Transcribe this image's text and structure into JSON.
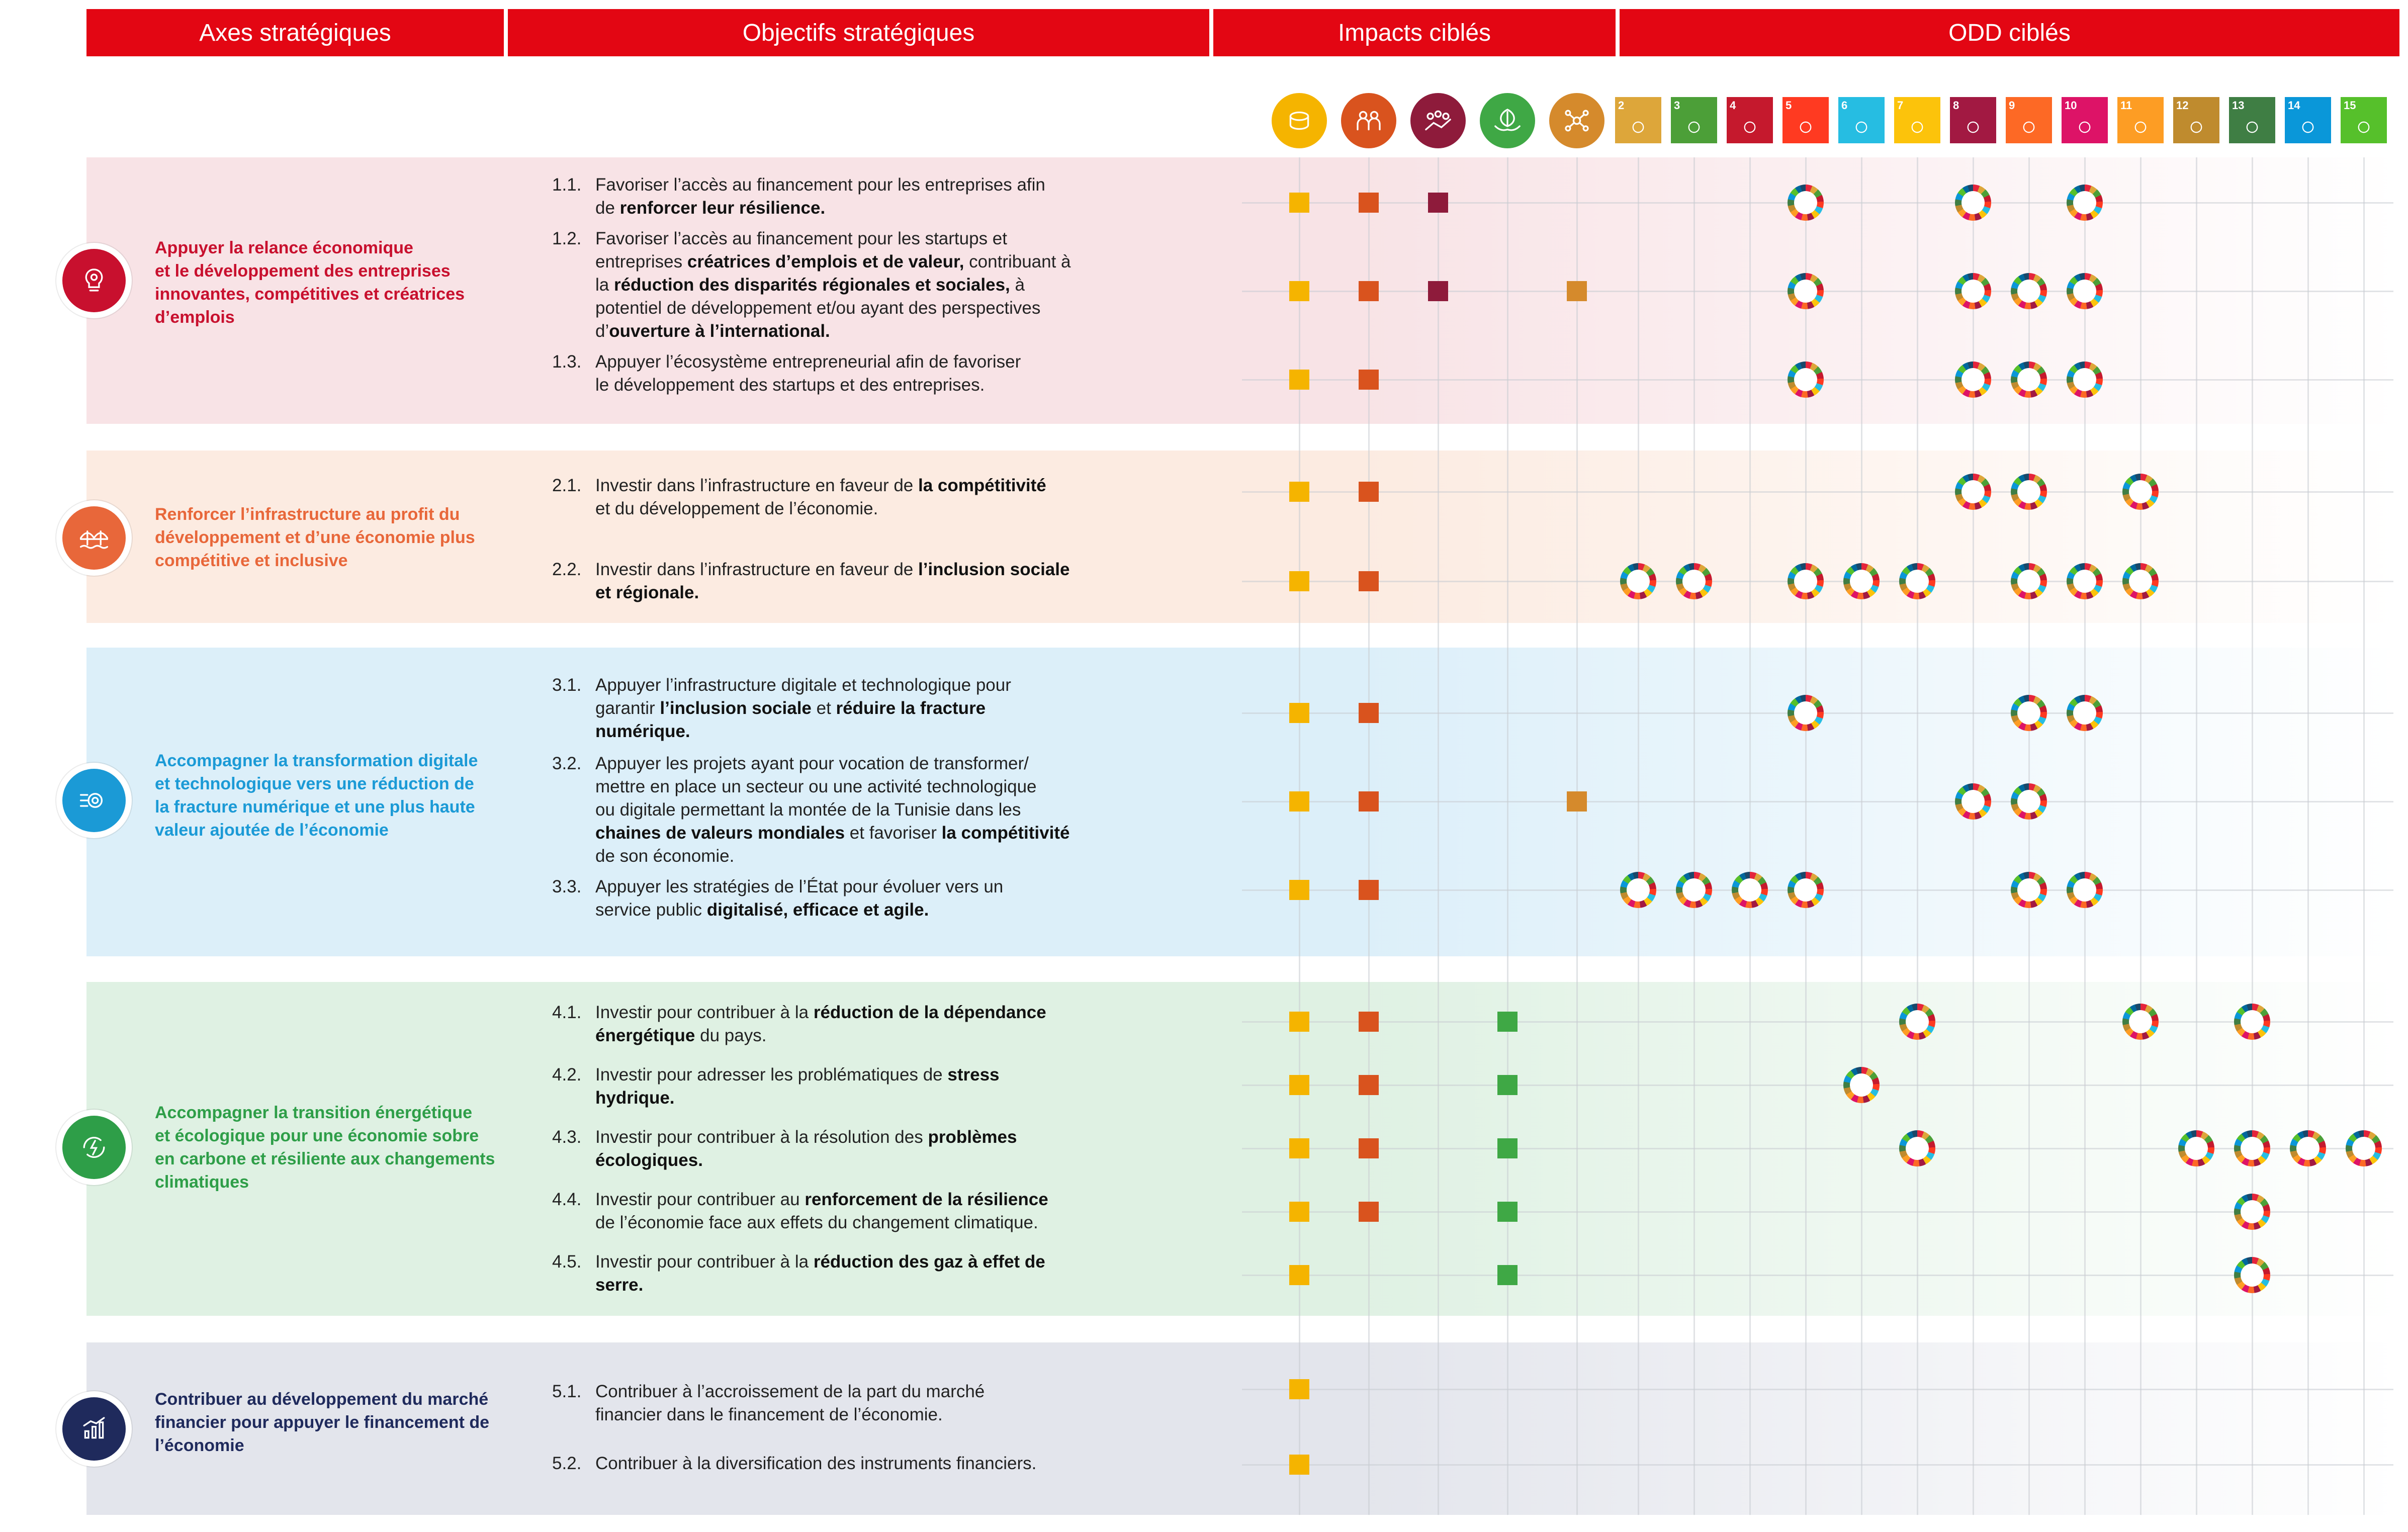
{
  "headers": {
    "axes": "Axes stratégiques",
    "objectives": "Objectifs stratégiques",
    "impacts": "Impacts ciblés",
    "odd": "ODD ciblés"
  },
  "impact_icons": [
    {
      "name": "coins-icon",
      "color": "#f5b400"
    },
    {
      "name": "people-group-icon",
      "color": "#d9531e"
    },
    {
      "name": "crowd-icon",
      "color": "#8e1b3b"
    },
    {
      "name": "leaf-hands-icon",
      "color": "#3fa845"
    },
    {
      "name": "network-icon",
      "color": "#d58a2c"
    }
  ],
  "sdg_icons": [
    {
      "number": "2",
      "color": "#dda63a",
      "icon": "bowl-icon"
    },
    {
      "number": "3",
      "color": "#4c9f38",
      "icon": "heartbeat-icon"
    },
    {
      "number": "4",
      "color": "#c5192d",
      "icon": "book-icon"
    },
    {
      "number": "5",
      "color": "#ff3a21",
      "icon": "gender-icon"
    },
    {
      "number": "6",
      "color": "#26bde2",
      "icon": "water-drop-icon"
    },
    {
      "number": "7",
      "color": "#fcc30b",
      "icon": "sun-icon"
    },
    {
      "number": "8",
      "color": "#a21942",
      "icon": "growth-chart-icon"
    },
    {
      "number": "9",
      "color": "#fd6925",
      "icon": "cubes-icon"
    },
    {
      "number": "10",
      "color": "#dd1367",
      "icon": "equality-icon"
    },
    {
      "number": "11",
      "color": "#fd9d24",
      "icon": "city-icon"
    },
    {
      "number": "12",
      "color": "#bf8b2e",
      "icon": "infinity-icon"
    },
    {
      "number": "13",
      "color": "#3f7e44",
      "icon": "eye-globe-icon"
    },
    {
      "number": "14",
      "color": "#0a97d9",
      "icon": "fish-icon"
    },
    {
      "number": "15",
      "color": "#56c02b",
      "icon": "tree-icon"
    }
  ],
  "axes": [
    {
      "title_lines": [
        "Appuyer la relance économique",
        "et le développement des entreprises",
        "innovantes, compétitives et créatrices",
        "d’emplois"
      ],
      "color": "#c8102e",
      "band_color": "#f8e3e6",
      "icon": "lightbulb-gear-icon",
      "objectives": [
        {
          "num": "1.1.",
          "parts": [
            {
              "t": "Favoriser l’accès au financement pour les entreprises afin",
              "b": false
            },
            {
              "br": true
            },
            {
              "t": "de ",
              "b": false
            },
            {
              "t": "renforcer leur résilience.",
              "b": true
            }
          ]
        },
        {
          "num": "1.2.",
          "parts": [
            {
              "t": "Favoriser l’accès au financement pour les startups et",
              "b": false
            },
            {
              "br": true
            },
            {
              "t": "entreprises ",
              "b": false
            },
            {
              "t": "créatrices d’emplois et de valeur,",
              "b": true
            },
            {
              "t": " contribuant à",
              "b": false
            },
            {
              "br": true
            },
            {
              "t": "la ",
              "b": false
            },
            {
              "t": "réduction des disparités régionales et sociales,",
              "b": true
            },
            {
              "t": " à",
              "b": false
            },
            {
              "br": true
            },
            {
              "t": "potentiel de développement et/ou ayant des perspectives",
              "b": false
            },
            {
              "br": true
            },
            {
              "t": "d’",
              "b": false
            },
            {
              "t": "ouverture à l’international.",
              "b": true
            }
          ]
        },
        {
          "num": "1.3.",
          "parts": [
            {
              "t": "Appuyer l’écosystème entrepreneurial afin de favoriser",
              "b": false
            },
            {
              "br": true
            },
            {
              "t": "le développement des startups et des entreprises.",
              "b": false
            }
          ]
        }
      ]
    },
    {
      "title_lines": [
        "Renforcer l’infrastructure au profit du",
        "développement et d’une économie plus",
        "compétitive et inclusive"
      ],
      "color": "#e8673a",
      "band_color": "#fcebe1",
      "icon": "bridge-icon",
      "objectives": [
        {
          "num": "2.1.",
          "parts": [
            {
              "t": "Investir dans l’infrastructure en faveur de ",
              "b": false
            },
            {
              "t": "la compétitivité",
              "b": true
            },
            {
              "br": true
            },
            {
              "t": "et du développement de l’économie.",
              "b": false
            }
          ]
        },
        {
          "num": "2.2.",
          "parts": [
            {
              "t": "Investir dans l’infrastructure en faveur de ",
              "b": false
            },
            {
              "t": "l’inclusion sociale",
              "b": true
            },
            {
              "br": true
            },
            {
              "t": "et régionale.",
              "b": true
            }
          ]
        }
      ]
    },
    {
      "title_lines": [
        "Accompagner la transformation digitale",
        "et technologique vers une réduction de",
        "la fracture numérique et une plus haute",
        "valeur ajoutée de l’économie"
      ],
      "color": "#1b9ad6",
      "band_color": "#dceff9",
      "icon": "digital-gear-icon",
      "objectives": [
        {
          "num": "3.1.",
          "parts": [
            {
              "t": "Appuyer l’infrastructure digitale et technologique pour",
              "b": false
            },
            {
              "br": true
            },
            {
              "t": "garantir ",
              "b": false
            },
            {
              "t": "l’inclusion sociale",
              "b": true
            },
            {
              "t": " et ",
              "b": false
            },
            {
              "t": "réduire la fracture",
              "b": true
            },
            {
              "br": true
            },
            {
              "t": "numérique.",
              "b": true
            }
          ]
        },
        {
          "num": "3.2.",
          "parts": [
            {
              "t": "Appuyer les projets ayant pour vocation de transformer/",
              "b": false
            },
            {
              "br": true
            },
            {
              "t": "mettre en place un secteur ou une activité technologique",
              "b": false
            },
            {
              "br": true
            },
            {
              "t": "ou digitale permettant la montée de la Tunisie dans les",
              "b": false
            },
            {
              "br": true
            },
            {
              "t": "chaines de valeurs mondiales",
              "b": true
            },
            {
              "t": " et favoriser ",
              "b": false
            },
            {
              "t": "la compétitivité",
              "b": true
            },
            {
              "br": true
            },
            {
              "t": "de son économie.",
              "b": false
            }
          ]
        },
        {
          "num": "3.3.",
          "parts": [
            {
              "t": "Appuyer les stratégies de l’État pour évoluer vers un",
              "b": false
            },
            {
              "br": true
            },
            {
              "t": "service public ",
              "b": false
            },
            {
              "t": "digitalisé, efficace et agile.",
              "b": true
            }
          ]
        }
      ]
    },
    {
      "title_lines": [
        "Accompagner la transition énergétique",
        "et écologique pour une économie sobre",
        "en carbone et résiliente aux changements",
        "climatiques"
      ],
      "color": "#2e9e48",
      "band_color": "#dff1e3",
      "icon": "energy-leaf-icon",
      "objectives": [
        {
          "num": "4.1.",
          "parts": [
            {
              "t": "Investir pour contribuer à la ",
              "b": false
            },
            {
              "t": "réduction de la dépendance",
              "b": true
            },
            {
              "br": true
            },
            {
              "t": "énergétique",
              "b": true
            },
            {
              "t": " du pays.",
              "b": false
            }
          ]
        },
        {
          "num": "4.2.",
          "parts": [
            {
              "t": "Investir pour adresser les problématiques de ",
              "b": false
            },
            {
              "t": "stress",
              "b": true
            },
            {
              "br": true
            },
            {
              "t": "hydrique.",
              "b": true
            }
          ]
        },
        {
          "num": "4.3.",
          "parts": [
            {
              "t": "Investir pour contribuer à la résolution des ",
              "b": false
            },
            {
              "t": "problèmes",
              "b": true
            },
            {
              "br": true
            },
            {
              "t": "écologiques.",
              "b": true
            }
          ]
        },
        {
          "num": "4.4.",
          "parts": [
            {
              "t": "Investir pour contribuer au ",
              "b": false
            },
            {
              "t": "renforcement de la résilience",
              "b": true
            },
            {
              "br": true
            },
            {
              "t": "de l’économie face aux effets du changement climatique.",
              "b": false
            }
          ]
        },
        {
          "num": "4.5.",
          "parts": [
            {
              "t": "Investir pour contribuer à la ",
              "b": false
            },
            {
              "t": "réduction des gaz à effet de",
              "b": true
            },
            {
              "br": true
            },
            {
              "t": "serre.",
              "b": true
            }
          ]
        }
      ]
    },
    {
      "title_lines": [
        "Contribuer au développement du marché",
        "financier pour appuyer le financement de",
        "l’économie"
      ],
      "color": "#1f2a5c",
      "band_color": "#e3e5ec",
      "icon": "market-chart-icon",
      "objectives": [
        {
          "num": "5.1.",
          "parts": [
            {
              "t": "Contribuer à l’accroissement de la part du marché",
              "b": false
            },
            {
              "br": true
            },
            {
              "t": "financier dans le financement de l’économie.",
              "b": false
            }
          ]
        },
        {
          "num": "5.2.",
          "parts": [
            {
              "t": "Contribuer à la diversification des instruments financiers.",
              "b": false
            }
          ]
        }
      ]
    }
  ],
  "matrix": {
    "impacts": {
      "1.1": [
        1,
        2,
        3
      ],
      "1.2": [
        1,
        2,
        3,
        5
      ],
      "1.3": [
        1,
        2
      ],
      "2.1": [
        1,
        2
      ],
      "2.2": [
        1,
        2
      ],
      "3.1": [
        1,
        2
      ],
      "3.2": [
        1,
        2,
        5
      ],
      "3.3": [
        1,
        2
      ],
      "4.1": [
        1,
        2,
        4
      ],
      "4.2": [
        1,
        2,
        4
      ],
      "4.3": [
        1,
        2,
        4
      ],
      "4.4": [
        1,
        2,
        4
      ],
      "4.5": [
        1,
        4
      ],
      "5.1": [
        1
      ],
      "5.2": [
        1
      ]
    },
    "odd": {
      "1.1": [
        5,
        8,
        10
      ],
      "1.2": [
        5,
        8,
        9,
        10
      ],
      "1.3": [
        5,
        8,
        9,
        10
      ],
      "2.1": [
        8,
        9,
        11
      ],
      "2.2": [
        2,
        3,
        5,
        6,
        7,
        9,
        10,
        11
      ],
      "3.1": [
        5,
        9,
        10
      ],
      "3.2": [
        8,
        9
      ],
      "3.3": [
        2,
        3,
        4,
        5,
        9,
        10
      ],
      "4.1": [
        7,
        11,
        13
      ],
      "4.2": [
        6
      ],
      "4.3": [
        7,
        12,
        13,
        14,
        15
      ],
      "4.4": [
        13
      ],
      "4.5": [
        13
      ],
      "5.1": [],
      "5.2": []
    }
  }
}
